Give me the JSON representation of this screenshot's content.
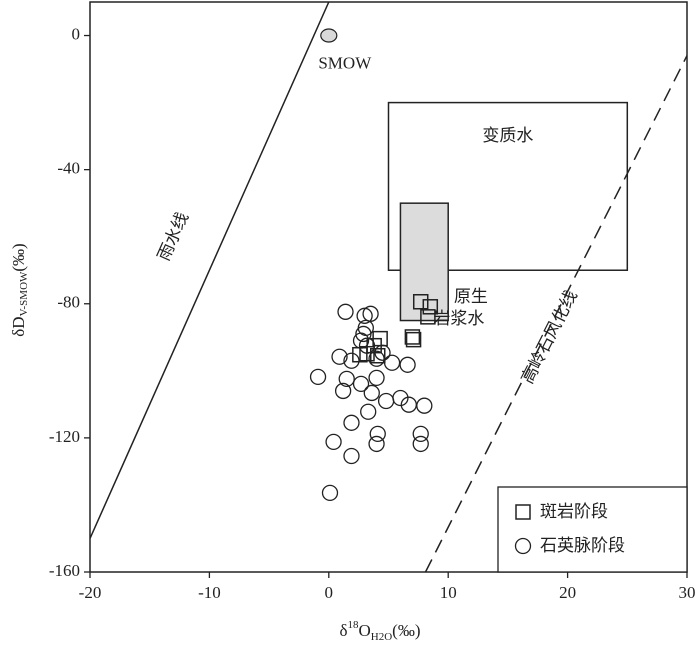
{
  "chart_data": {
    "type": "scatter",
    "x_label": [
      "δ",
      "18",
      "O",
      "H2O",
      "(‰)"
    ],
    "y_label": [
      "δD",
      "V-SMOW",
      "(‰)"
    ],
    "xlim": [
      -20,
      30
    ],
    "ylim": [
      -160,
      10
    ],
    "xticks": [
      -20,
      -10,
      0,
      10,
      20,
      30
    ],
    "yticks": [
      -160,
      -120,
      -80,
      -40,
      0
    ],
    "series": [
      {
        "name": "斑岩阶段",
        "marker": "square",
        "color": "#222222",
        "x": [
          7.7,
          8.5,
          8.3,
          7.0,
          7.1,
          4.3,
          3.8,
          2.6,
          3.2,
          4.1
        ],
        "y": [
          -79.4,
          -80.9,
          -83.9,
          -89.9,
          -90.7,
          -90.4,
          -92.5,
          -95.2,
          -94.9,
          -95.5
        ]
      },
      {
        "name": "石英脉阶段",
        "marker": "circle",
        "color": "#222222",
        "x": [
          1.4,
          3.0,
          3.5,
          3.1,
          2.9,
          2.7,
          3.2,
          4.5,
          0.9,
          1.9,
          4.0,
          5.3,
          6.6,
          -0.9,
          1.5,
          2.7,
          4.0,
          1.2,
          3.6,
          4.8,
          6.0,
          6.7,
          8.0,
          3.3,
          1.9,
          4.1,
          4.0,
          0.4,
          7.7,
          7.7,
          1.9,
          0.1
        ],
        "y": [
          -82.4,
          -83.6,
          -83.0,
          -87.2,
          -89.0,
          -91.0,
          -92.5,
          -94.6,
          -95.8,
          -97.0,
          -96.4,
          -97.6,
          -98.2,
          -101.8,
          -102.4,
          -103.9,
          -102.1,
          -106.0,
          -106.6,
          -109.0,
          -108.1,
          -110.1,
          -110.4,
          -112.2,
          -115.5,
          -118.8,
          -121.8,
          -121.2,
          -118.8,
          -121.8,
          -125.4,
          -136.4
        ]
      }
    ],
    "points": [
      {
        "label": "SMOW",
        "x": 0,
        "y": 0,
        "color": "#d9d9d9"
      }
    ],
    "lines": [
      {
        "label": "雨水线",
        "x": [
          -20,
          0
        ],
        "y": [
          -150,
          10
        ],
        "dash": false
      },
      {
        "label": "高岭石风化线",
        "x": [
          8.1,
          30
        ],
        "y": [
          -160,
          -6
        ],
        "dash": true
      }
    ],
    "regions": [
      {
        "label": [
          "变质水"
        ],
        "x": [
          5,
          25
        ],
        "y": [
          -70,
          -20
        ],
        "color": "#ffffff"
      },
      {
        "label": [
          "原生",
          "岩浆水"
        ],
        "x": [
          6,
          10
        ],
        "y": [
          -85,
          -50
        ],
        "color": "#dcdcdc"
      }
    ],
    "legend": "lower right"
  }
}
